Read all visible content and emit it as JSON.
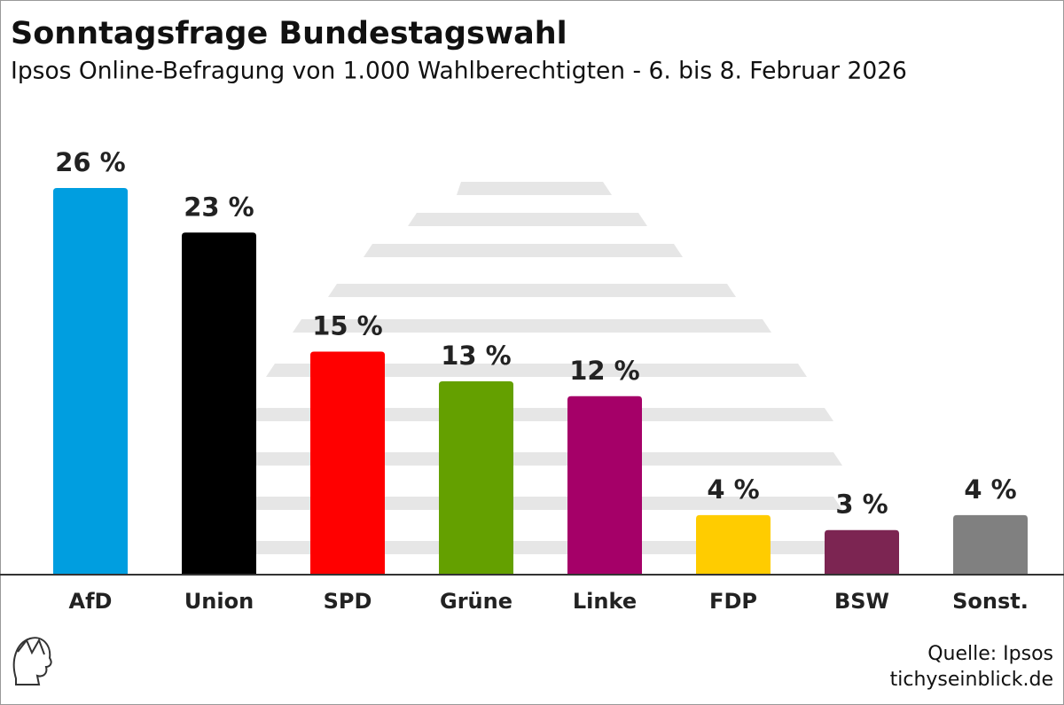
{
  "chart_data": {
    "type": "bar",
    "title": "Sonntagsfrage Bundestagswahl",
    "subtitle": "Ipsos Online-Befragung von 1.000 Wahlberechtigten - 6. bis 8. Februar 2026",
    "categories": [
      "AfD",
      "Union",
      "SPD",
      "Grüne",
      "Linke",
      "FDP",
      "BSW",
      "Sonst."
    ],
    "values": [
      26,
      23,
      15,
      13,
      12,
      4,
      3,
      4
    ],
    "value_labels": [
      "26 %",
      "23 %",
      "15 %",
      "13 %",
      "12 %",
      "4 %",
      "3 %",
      "4 %"
    ],
    "colors": [
      "#009ee0",
      "#000000",
      "#ff0000",
      "#64a000",
      "#a50068",
      "#ffcc00",
      "#7c2552",
      "#808080"
    ],
    "source": "Quelle: Ipsos",
    "publisher": "tichyseinblick.de"
  }
}
